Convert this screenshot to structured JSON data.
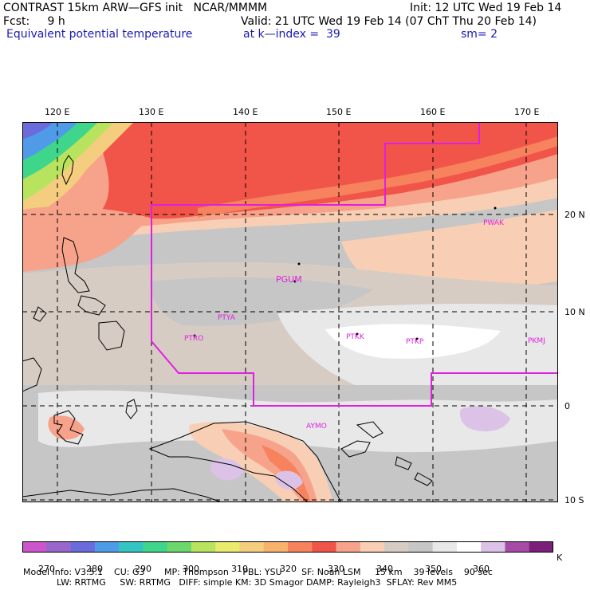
{
  "header": {
    "line1_left": "CONTRAST 15km ARW—GFS init   NCAR/MMMM",
    "line1_right": "Init: 12 UTC Wed 19 Feb 14",
    "line2_left": "Fcst:     9 h",
    "line2_right": "Valid: 21 UTC Wed 19 Feb 14 (07 ChT Thu 20 Feb 14)",
    "line3_left": "Equivalent potential temperature",
    "line3_mid": "at k—index =  39",
    "line3_right": "sm= 2"
  },
  "axes": {
    "lon_labels": [
      "120 E",
      "130 E",
      "140 E",
      "150 E",
      "160 E",
      "170 E"
    ],
    "lat_labels": [
      "20 N",
      "10 N",
      "0",
      "10 S"
    ]
  },
  "stations": [
    "PWAK",
    "PGUM",
    "PTYA",
    "PTRO",
    "PTKK",
    "PTKP",
    "PKMJ",
    "AYMO"
  ],
  "colorbar": {
    "colors": [
      "#cc55cc",
      "#9966cc",
      "#6b6bdc",
      "#4f9be8",
      "#35c4c4",
      "#3fd68c",
      "#6cd76c",
      "#b8e35e",
      "#e9ea6e",
      "#f4ce7e",
      "#f7b36d",
      "#f7835e",
      "#f15549",
      "#f7a38b",
      "#f8cfb4",
      "#d7ccc4",
      "#c6c6c6",
      "#e8e8e8",
      "#ffffff",
      "#dcc2e6",
      "#a54aa5",
      "#7a1f7a"
    ],
    "tick_labels": [
      "270",
      "280",
      "290",
      "300",
      "310",
      "320",
      "330",
      "340",
      "350",
      "360"
    ],
    "unit": "K"
  },
  "model_info": {
    "line1": "Model Info: V3.5.1    CU: G3       MP: Thompson     PBL: YSU       SF: Noah LSM     15 km    39 levels    90 sec",
    "line2": "LW: RRTMG     SW: RRTMG   DIFF: simple KM: 3D Smagor DAMP: Rayleigh3  SFLAY: Rev MM5"
  }
}
